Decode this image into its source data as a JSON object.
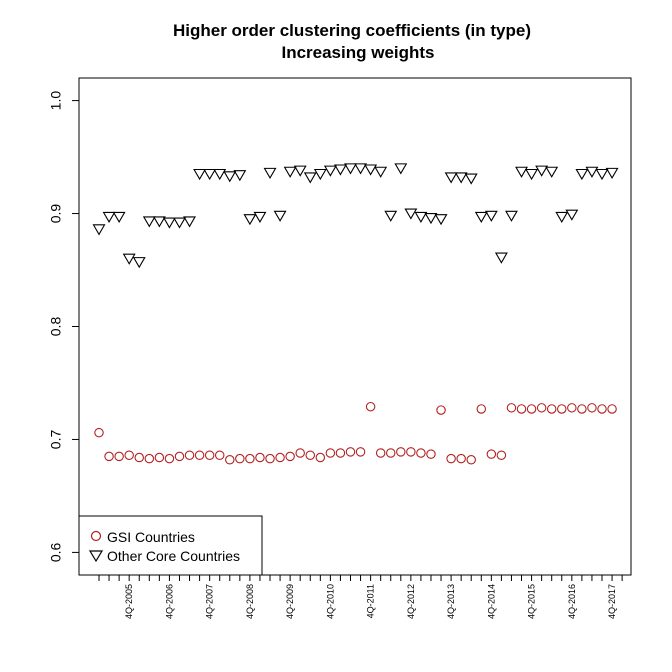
{
  "chart_data": {
    "type": "scatter",
    "title": "Higher order clustering coefficients (in type)",
    "subtitle": "Increasing weights",
    "xlabel": "",
    "ylabel": "",
    "ylim": [
      0.58,
      1.02
    ],
    "yticks": [
      "0.6",
      "0.7",
      "0.8",
      "0.9",
      "1.0"
    ],
    "xtick_labels": [
      "4Q-2005",
      "4Q-2006",
      "4Q-2007",
      "4Q-2008",
      "4Q-2009",
      "4Q-2010",
      "4Q-2011",
      "4Q-2012",
      "4Q-2013",
      "4Q-2014",
      "4Q-2015",
      "4Q-2016",
      "4Q-2017"
    ],
    "grid": false,
    "legend_position": "bottom-left",
    "colors": {
      "gsi": "#b22222",
      "core": "#000000"
    },
    "series": [
      {
        "name": "GSI Countries",
        "marker": "circle",
        "values": [
          0.706,
          0.685,
          0.685,
          0.686,
          0.684,
          0.683,
          0.684,
          0.683,
          0.685,
          0.686,
          0.686,
          0.686,
          0.686,
          0.682,
          0.683,
          0.683,
          0.684,
          0.683,
          0.684,
          0.685,
          0.688,
          0.686,
          0.684,
          0.688,
          0.688,
          0.689,
          0.689,
          0.729,
          0.688,
          0.688,
          0.689,
          0.689,
          0.688,
          0.687,
          0.726,
          0.683,
          0.683,
          0.682,
          0.727,
          0.687,
          0.686,
          0.728,
          0.727,
          0.727,
          0.728,
          0.727,
          0.727,
          0.728,
          0.727,
          0.728,
          0.727,
          0.727
        ]
      },
      {
        "name": "Other Core Countries",
        "marker": "triangle-down",
        "values": [
          0.886,
          0.897,
          0.897,
          0.86,
          0.857,
          0.893,
          0.893,
          0.892,
          0.892,
          0.893,
          0.935,
          0.935,
          0.935,
          0.933,
          0.934,
          0.895,
          0.897,
          0.936,
          0.898,
          0.937,
          0.938,
          0.932,
          0.935,
          0.938,
          0.939,
          0.94,
          0.94,
          0.939,
          0.937,
          0.898,
          0.94,
          0.9,
          0.897,
          0.896,
          0.895,
          0.932,
          0.932,
          0.931,
          0.897,
          0.898,
          0.861,
          0.898,
          0.937,
          0.935,
          0.938,
          0.937,
          0.897,
          0.899,
          0.935,
          0.937,
          0.935,
          0.936
        ]
      }
    ]
  }
}
